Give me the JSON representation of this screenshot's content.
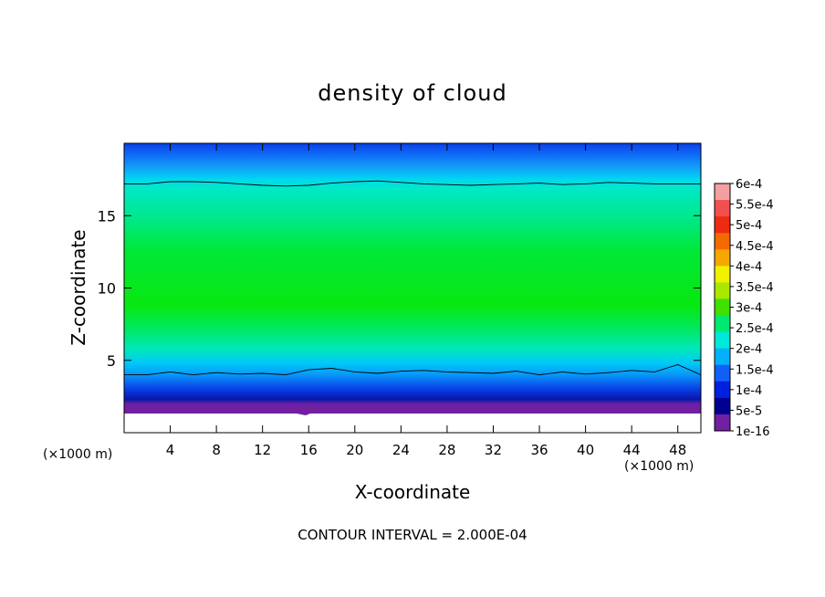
{
  "chart_data": {
    "type": "heatmap",
    "title": "density of cloud",
    "xlabel": "X-coordinate",
    "ylabel": "Z-coordinate",
    "x_unit_left": "(×1000 m)",
    "x_unit_right": "(×1000 m)",
    "footer": "CONTOUR INTERVAL = 2.000E-04",
    "xlim": [
      0,
      50
    ],
    "ylim": [
      0,
      20
    ],
    "x_ticks": [
      "4",
      "8",
      "12",
      "16",
      "20",
      "24",
      "28",
      "32",
      "36",
      "40",
      "44",
      "48"
    ],
    "x_tick_values": [
      4,
      8,
      12,
      16,
      20,
      24,
      28,
      32,
      36,
      40,
      44,
      48
    ],
    "y_ticks": [
      "5",
      "10",
      "15"
    ],
    "y_tick_values": [
      5,
      10,
      15
    ],
    "colorbar": {
      "labels": [
        "6e-4",
        "5.5e-4",
        "5e-4",
        "4.5e-4",
        "4e-4",
        "3.5e-4",
        "3e-4",
        "2.5e-4",
        "2e-4",
        "1.5e-4",
        "1e-4",
        "5e-5",
        "1e-16"
      ],
      "colors": [
        "#f4a0a0",
        "#f05050",
        "#ee2a10",
        "#f56a00",
        "#f5a800",
        "#f0f000",
        "#a8e800",
        "#40e000",
        "#00e870",
        "#00e8d8",
        "#00b0f8",
        "#1060f8",
        "#0020e0",
        "#000090",
        "#7020a0"
      ]
    },
    "profile": [
      {
        "z": 1.5,
        "value": 0
      },
      {
        "z": 2.5,
        "value": 5e-05
      },
      {
        "z": 3.5,
        "value": 0.0001
      },
      {
        "z": 4.0,
        "value": 0.00015
      },
      {
        "z": 5.0,
        "value": 0.0002
      },
      {
        "z": 7.5,
        "value": 0.00025
      },
      {
        "z": 10.0,
        "value": 0.0003
      },
      {
        "z": 13.0,
        "value": 0.0003
      },
      {
        "z": 15.0,
        "value": 0.00025
      },
      {
        "z": 17.3,
        "value": 0.0002
      },
      {
        "z": 18.5,
        "value": 0.00015
      },
      {
        "z": 19.5,
        "value": 0.0001
      },
      {
        "z": 20.0,
        "value": 5e-05
      }
    ],
    "contours": [
      {
        "value": 0.0002,
        "z": [
          17.2,
          17.2,
          17.35,
          17.35,
          17.3,
          17.2,
          17.1,
          17.05,
          17.1,
          17.25,
          17.35,
          17.4,
          17.3,
          17.2,
          17.15,
          17.1,
          17.15,
          17.2,
          17.25,
          17.15,
          17.2,
          17.3,
          17.25,
          17.2,
          17.2,
          17.2
        ]
      },
      {
        "value": 0.0002,
        "z": [
          4.0,
          4.0,
          4.2,
          4.0,
          4.15,
          4.05,
          4.1,
          4.0,
          4.35,
          4.45,
          4.2,
          4.1,
          4.25,
          4.3,
          4.2,
          4.15,
          4.1,
          4.25,
          4.0,
          4.2,
          4.05,
          4.15,
          4.3,
          4.2,
          4.7,
          4.0
        ]
      }
    ]
  }
}
